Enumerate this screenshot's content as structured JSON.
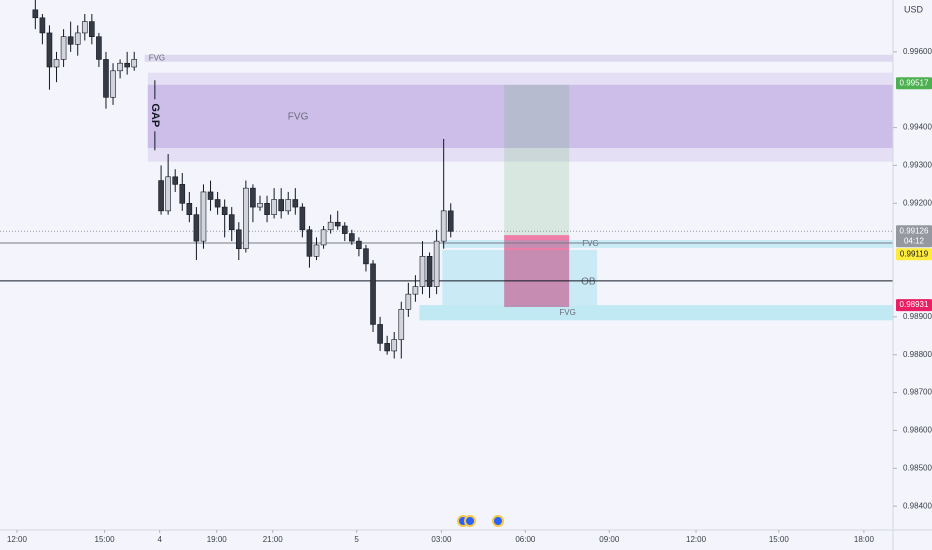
{
  "chart_data": {
    "type": "candlestick",
    "currency": "USD",
    "countdown": "04:12",
    "xlim": [
      -0.6,
      31
    ],
    "ylim": [
      0.98337,
      0.99737
    ],
    "xticks": [
      {
        "value": 0,
        "label": "12:00"
      },
      {
        "value": 3.1,
        "label": "15:00"
      },
      {
        "value": 5.05,
        "label": "4"
      },
      {
        "value": 7.07,
        "label": "19:00"
      },
      {
        "value": 9.05,
        "label": "21:00"
      },
      {
        "value": 12.02,
        "label": "5"
      },
      {
        "value": 15.02,
        "label": "03:00"
      },
      {
        "value": 17.99,
        "label": "06:00"
      },
      {
        "value": 20.96,
        "label": "09:00"
      },
      {
        "value": 24.03,
        "label": "12:00"
      },
      {
        "value": 26.96,
        "label": "15:00"
      },
      {
        "value": 29.97,
        "label": "18:00"
      }
    ],
    "yticks": [
      {
        "value": 0.996,
        "label": "0.99600"
      },
      {
        "value": 0.994,
        "label": "0.99400"
      },
      {
        "value": 0.993,
        "label": "0.99300"
      },
      {
        "value": 0.992,
        "label": "0.99200"
      },
      {
        "value": 0.989,
        "label": "0.98900"
      },
      {
        "value": 0.988,
        "label": "0.98800"
      },
      {
        "value": 0.987,
        "label": "0.98700"
      },
      {
        "value": 0.986,
        "label": "0.98600"
      },
      {
        "value": 0.985,
        "label": "0.98500"
      },
      {
        "value": 0.984,
        "label": "0.98400"
      }
    ],
    "up_color": "#d1d4dc",
    "down_color": "#363a45",
    "x": [
      0.65,
      0.9,
      1.15,
      1.4,
      1.65,
      1.9,
      2.15,
      2.4,
      2.65,
      2.9,
      3.15,
      3.4,
      3.65,
      3.9,
      4.15,
      5.1,
      5.35,
      5.6,
      5.85,
      6.1,
      6.35,
      6.6,
      6.85,
      7.1,
      7.35,
      7.6,
      7.85,
      8.1,
      8.35,
      8.6,
      8.85,
      9.1,
      9.35,
      9.6,
      9.85,
      10.1,
      10.35,
      10.6,
      10.85,
      11.1,
      11.35,
      11.6,
      11.85,
      12.1,
      12.35,
      12.6,
      12.85,
      13.1,
      13.35,
      13.6,
      13.85,
      14.1,
      14.35,
      14.6,
      14.85,
      15.1,
      15.35
    ],
    "open": [
      0.99711,
      0.9969,
      0.9965,
      0.9956,
      0.9958,
      0.9964,
      0.9962,
      0.9965,
      0.9968,
      0.9964,
      0.9958,
      0.9948,
      0.9955,
      0.9957,
      0.9956,
      0.9926,
      0.9918,
      0.9927,
      0.9925,
      0.992,
      0.9917,
      0.991,
      0.9923,
      0.9921,
      0.9919,
      0.9917,
      0.9913,
      0.9908,
      0.9924,
      0.9919,
      0.992,
      0.9917,
      0.9921,
      0.9918,
      0.9921,
      0.9919,
      0.9913,
      0.9906,
      0.9909,
      0.9913,
      0.9915,
      0.9914,
      0.9912,
      0.991,
      0.9908,
      0.9904,
      0.9888,
      0.9883,
      0.9881,
      0.9884,
      0.9892,
      0.9896,
      0.9898,
      0.9906,
      0.9898,
      0.991,
      0.9918
    ],
    "high": [
      0.9974,
      0.997,
      0.9967,
      0.996,
      0.9966,
      0.9968,
      0.9967,
      0.997,
      0.997,
      0.9965,
      0.996,
      0.9957,
      0.9958,
      0.996,
      0.996,
      0.993,
      0.9933,
      0.9929,
      0.9928,
      0.9923,
      0.9919,
      0.9925,
      0.9926,
      0.9923,
      0.9921,
      0.9919,
      0.9915,
      0.9926,
      0.9925,
      0.9922,
      0.9922,
      0.9924,
      0.9924,
      0.9923,
      0.9924,
      0.992,
      0.9914,
      0.9911,
      0.9914,
      0.9917,
      0.9918,
      0.9915,
      0.9913,
      0.9911,
      0.9909,
      0.9905,
      0.989,
      0.9885,
      0.9886,
      0.9894,
      0.9899,
      0.9901,
      0.991,
      0.9907,
      0.9913,
      0.9937,
      0.992
    ],
    "low": [
      0.9966,
      0.9962,
      0.995,
      0.9952,
      0.9956,
      0.996,
      0.9959,
      0.9963,
      0.9962,
      0.9956,
      0.9945,
      0.9946,
      0.9953,
      0.9954,
      0.9955,
      0.9917,
      0.9917,
      0.9923,
      0.9918,
      0.9915,
      0.9905,
      0.9908,
      0.9918,
      0.9917,
      0.9911,
      0.991,
      0.9905,
      0.9907,
      0.9915,
      0.9918,
      0.9915,
      0.9916,
      0.9916,
      0.9917,
      0.9917,
      0.9911,
      0.9903,
      0.9905,
      0.9908,
      0.9912,
      0.9913,
      0.991,
      0.9909,
      0.9906,
      0.9902,
      0.9886,
      0.9881,
      0.988,
      0.9879,
      0.9879,
      0.989,
      0.9894,
      0.9896,
      0.9895,
      0.9896,
      0.9908,
      0.9911
    ],
    "close": [
      0.9969,
      0.9965,
      0.9956,
      0.9958,
      0.9964,
      0.9962,
      0.9965,
      0.9968,
      0.9964,
      0.9958,
      0.9948,
      0.9955,
      0.9957,
      0.9956,
      0.9958,
      0.9918,
      0.9927,
      0.9925,
      0.992,
      0.9917,
      0.991,
      0.9923,
      0.9921,
      0.9919,
      0.9917,
      0.9913,
      0.9908,
      0.9924,
      0.9919,
      0.992,
      0.9917,
      0.9921,
      0.9918,
      0.9921,
      0.9919,
      0.9913,
      0.9906,
      0.9909,
      0.9913,
      0.9915,
      0.9914,
      0.9912,
      0.991,
      0.9908,
      0.9904,
      0.9888,
      0.9883,
      0.9881,
      0.9884,
      0.9892,
      0.9896,
      0.9898,
      0.9906,
      0.9898,
      0.991,
      0.9918,
      0.99126
    ],
    "zones": [
      {
        "x0": 4.52,
        "x1": 31,
        "top": 0.99592,
        "bottom": 0.99574,
        "color": "rgba(149,117,205,0.22)",
        "label": "FVG"
      },
      {
        "x0": 4.63,
        "x1": 31,
        "top": 0.99545,
        "bottom": 0.9931,
        "color": "rgba(149,117,205,0.16)"
      },
      {
        "x0": 4.63,
        "x1": 31,
        "top": 0.99513,
        "bottom": 0.99346,
        "color": "rgba(149,117,205,0.3)",
        "label": "FVG"
      },
      {
        "x0": 17.24,
        "x1": 19.54,
        "top": 0.99513,
        "bottom": 0.99116,
        "color": "rgba(76,175,80,0.16)"
      },
      {
        "x0": 17.24,
        "x1": 19.54,
        "top": 0.99116,
        "bottom": 0.98926,
        "color": "rgba(233,30,99,0.55)"
      },
      {
        "x0": 15.05,
        "x1": 31,
        "top": 0.99103,
        "bottom": 0.99082,
        "color": "rgba(38,198,218,0.2)",
        "label": "FVG"
      },
      {
        "x0": 15.05,
        "x1": 20.53,
        "top": 0.99077,
        "bottom": 0.98931,
        "color": "rgba(38,198,218,0.2)",
        "label": "OB"
      },
      {
        "x0": 14.24,
        "x1": 31,
        "top": 0.98931,
        "bottom": 0.98891,
        "color": "rgba(38,198,218,0.25)",
        "label": "FVG"
      }
    ],
    "gap": {
      "label": "GAP",
      "x": 4.88,
      "top": 0.99525,
      "bottom": 0.9934
    },
    "hlines": [
      {
        "value": 0.99126,
        "color": "#9598a1",
        "dash": true
      },
      {
        "value": 0.99095,
        "color": "#787b86"
      },
      {
        "value": 0.98995,
        "color": "#131722"
      }
    ],
    "price_labels": [
      {
        "value": 0.99517,
        "color": "#4caf50"
      },
      {
        "value": 0.99126,
        "color": "#9598a1"
      },
      {
        "value": 0.99119,
        "color": "#ffeb3b"
      },
      {
        "value": 0.98931,
        "color": "#e91e63"
      }
    ]
  }
}
